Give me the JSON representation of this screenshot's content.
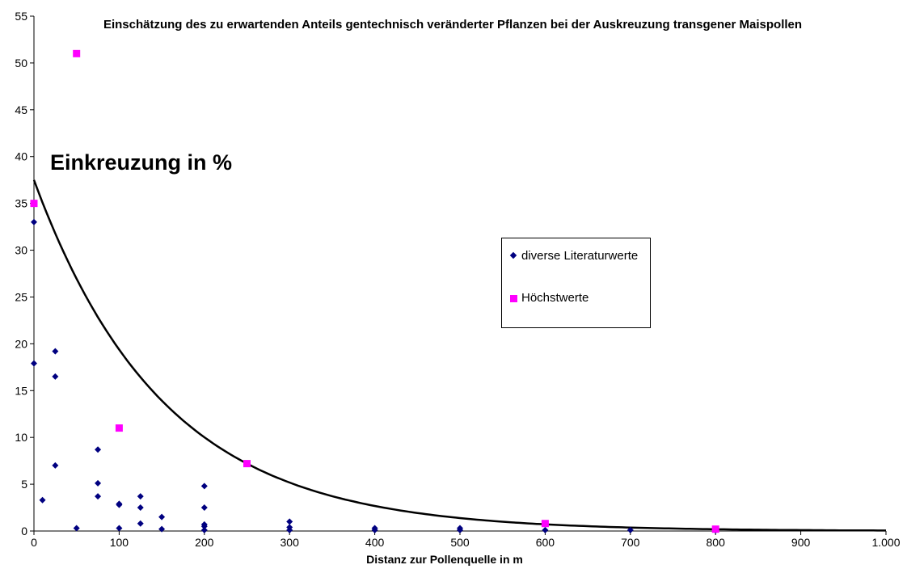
{
  "chart_data": {
    "type": "scatter",
    "title": "Einschätzung des zu erwartenden Anteils gentechnisch veränderter Pflanzen bei der Auskreuzung transgener Maispollen",
    "xlabel": "Distanz zur Pollenquelle in m",
    "ylabel": "Einkreuzung in %",
    "xlim": [
      0,
      1000
    ],
    "ylim": [
      0,
      55
    ],
    "x_ticks": [
      "0",
      "100",
      "200",
      "300",
      "400",
      "500",
      "600",
      "700",
      "800",
      "900",
      "1.000"
    ],
    "y_ticks": [
      "0",
      "5",
      "10",
      "15",
      "20",
      "25",
      "30",
      "35",
      "40",
      "45",
      "50",
      "55"
    ],
    "grid": false,
    "legend_position": "right",
    "series": [
      {
        "name": "diverse Literaturwerte",
        "marker": "diamond",
        "color": "#000080",
        "points": [
          [
            0,
            33
          ],
          [
            0,
            17.9
          ],
          [
            10,
            3.3
          ],
          [
            25,
            19.2
          ],
          [
            25,
            16.5
          ],
          [
            25,
            7
          ],
          [
            50,
            0.3
          ],
          [
            75,
            8.7
          ],
          [
            75,
            5.1
          ],
          [
            75,
            3.7
          ],
          [
            100,
            2.9
          ],
          [
            100,
            2.8
          ],
          [
            100,
            0.3
          ],
          [
            125,
            3.7
          ],
          [
            125,
            2.5
          ],
          [
            125,
            0.8
          ],
          [
            150,
            1.5
          ],
          [
            150,
            0.2
          ],
          [
            200,
            4.8
          ],
          [
            200,
            2.5
          ],
          [
            200,
            0.7
          ],
          [
            200,
            0.5
          ],
          [
            200,
            0.1
          ],
          [
            300,
            1
          ],
          [
            300,
            0.4
          ],
          [
            300,
            0.1
          ],
          [
            400,
            0.3
          ],
          [
            400,
            0.1
          ],
          [
            500,
            0.3
          ],
          [
            500,
            0.1
          ],
          [
            600,
            0.1
          ],
          [
            700,
            0.1
          ],
          [
            800,
            0.05
          ]
        ]
      },
      {
        "name": "Höchstwerte",
        "marker": "square",
        "color": "#FF00FF",
        "points": [
          [
            0,
            35
          ],
          [
            50,
            51
          ],
          [
            100,
            11
          ],
          [
            250,
            7.2
          ],
          [
            600,
            0.8
          ],
          [
            800,
            0.2
          ]
        ]
      }
    ],
    "trendline": {
      "type": "exponential",
      "a": 37.5,
      "b": -0.0066,
      "color": "#000000"
    }
  }
}
